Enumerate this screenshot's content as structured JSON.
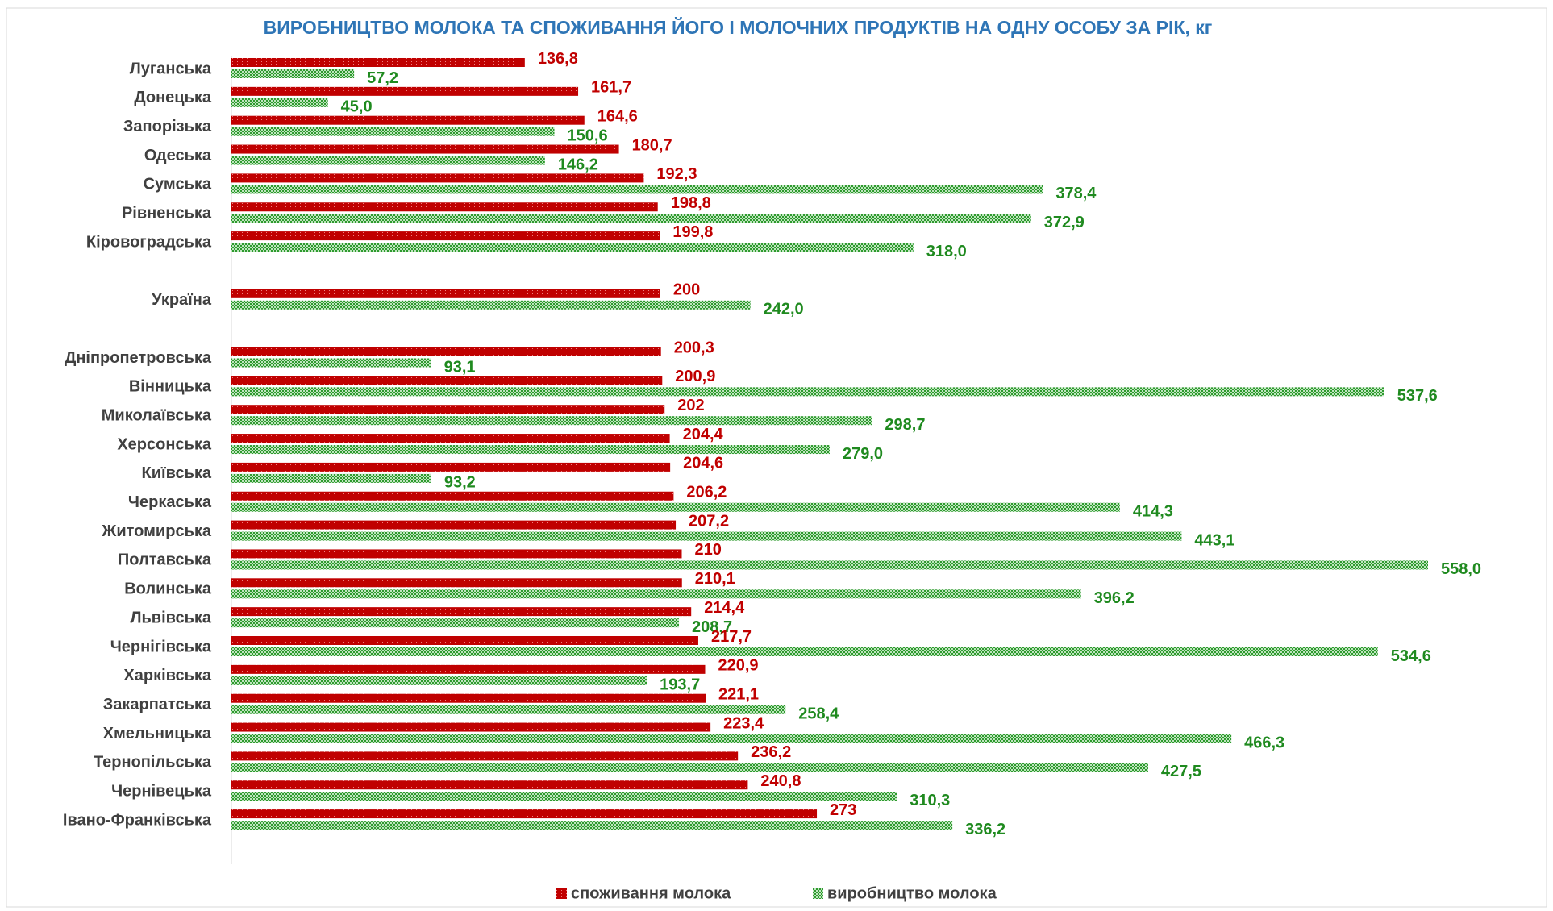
{
  "chart_data": {
    "type": "bar",
    "orientation": "horizontal",
    "title": "ВИРОБНИЦТВО МОЛОКА ТА СПОЖИВАННЯ ЙОГО І МОЛОЧНИХ ПРОДУКТІВ НА ОДНУ ОСОБУ ЗА РІК, кг",
    "categories": [
      "Луганська",
      "Донецька",
      "Запорізька",
      "Одеська",
      "Сумська",
      "Рівненська",
      "Кіровоградська",
      null,
      "Україна",
      null,
      "Дніпропетровська",
      "Вінницька",
      "Миколаївська",
      "Херсонська",
      "Київська",
      "Черкаська",
      "Житомирська",
      "Полтавська",
      "Волинська",
      "Львівська",
      "Чернігівська",
      "Харківська",
      "Закарпатська",
      "Хмельницька",
      "Тернопільська",
      "Чернівецька",
      "Івано-Франківська"
    ],
    "series": [
      {
        "name": "споживання молока",
        "color": "#c00000",
        "values": [
          136.8,
          161.7,
          164.6,
          180.7,
          192.3,
          198.8,
          199.8,
          null,
          200,
          null,
          200.3,
          200.9,
          202,
          204.4,
          204.6,
          206.2,
          207.2,
          210,
          210.1,
          214.4,
          217.7,
          220.9,
          221.1,
          223.4,
          236.2,
          240.8,
          273
        ],
        "value_labels": [
          "136,8",
          "161,7",
          "164,6",
          "180,7",
          "192,3",
          "198,8",
          "199,8",
          null,
          "200",
          null,
          "200,3",
          "200,9",
          "202",
          "204,4",
          "204,6",
          "206,2",
          "207,2",
          "210",
          "210,1",
          "214,4",
          "217,7",
          "220,9",
          "221,1",
          "223,4",
          "236,2",
          "240,8",
          "273"
        ]
      },
      {
        "name": "виробництво молока",
        "color": "#2e9a2e",
        "values": [
          57.2,
          45.0,
          150.6,
          146.2,
          378.4,
          372.9,
          318.0,
          null,
          242.0,
          null,
          93.1,
          537.6,
          298.7,
          279.0,
          93.2,
          414.3,
          443.1,
          558.0,
          396.2,
          208.7,
          534.6,
          193.7,
          258.4,
          466.3,
          427.5,
          310.3,
          336.2
        ],
        "value_labels": [
          "57,2",
          "45,0",
          "150,6",
          "146,2",
          "378,4",
          "372,9",
          "318,0",
          null,
          "242,0",
          null,
          "93,1",
          "537,6",
          "298,7",
          "279,0",
          "93,2",
          "414,3",
          "443,1",
          "558,0",
          "396,2",
          "208,7",
          "534,6",
          "193,7",
          "258,4",
          "466,3",
          "427,5",
          "310,3",
          "336,2"
        ]
      }
    ],
    "legend": "bottom"
  }
}
